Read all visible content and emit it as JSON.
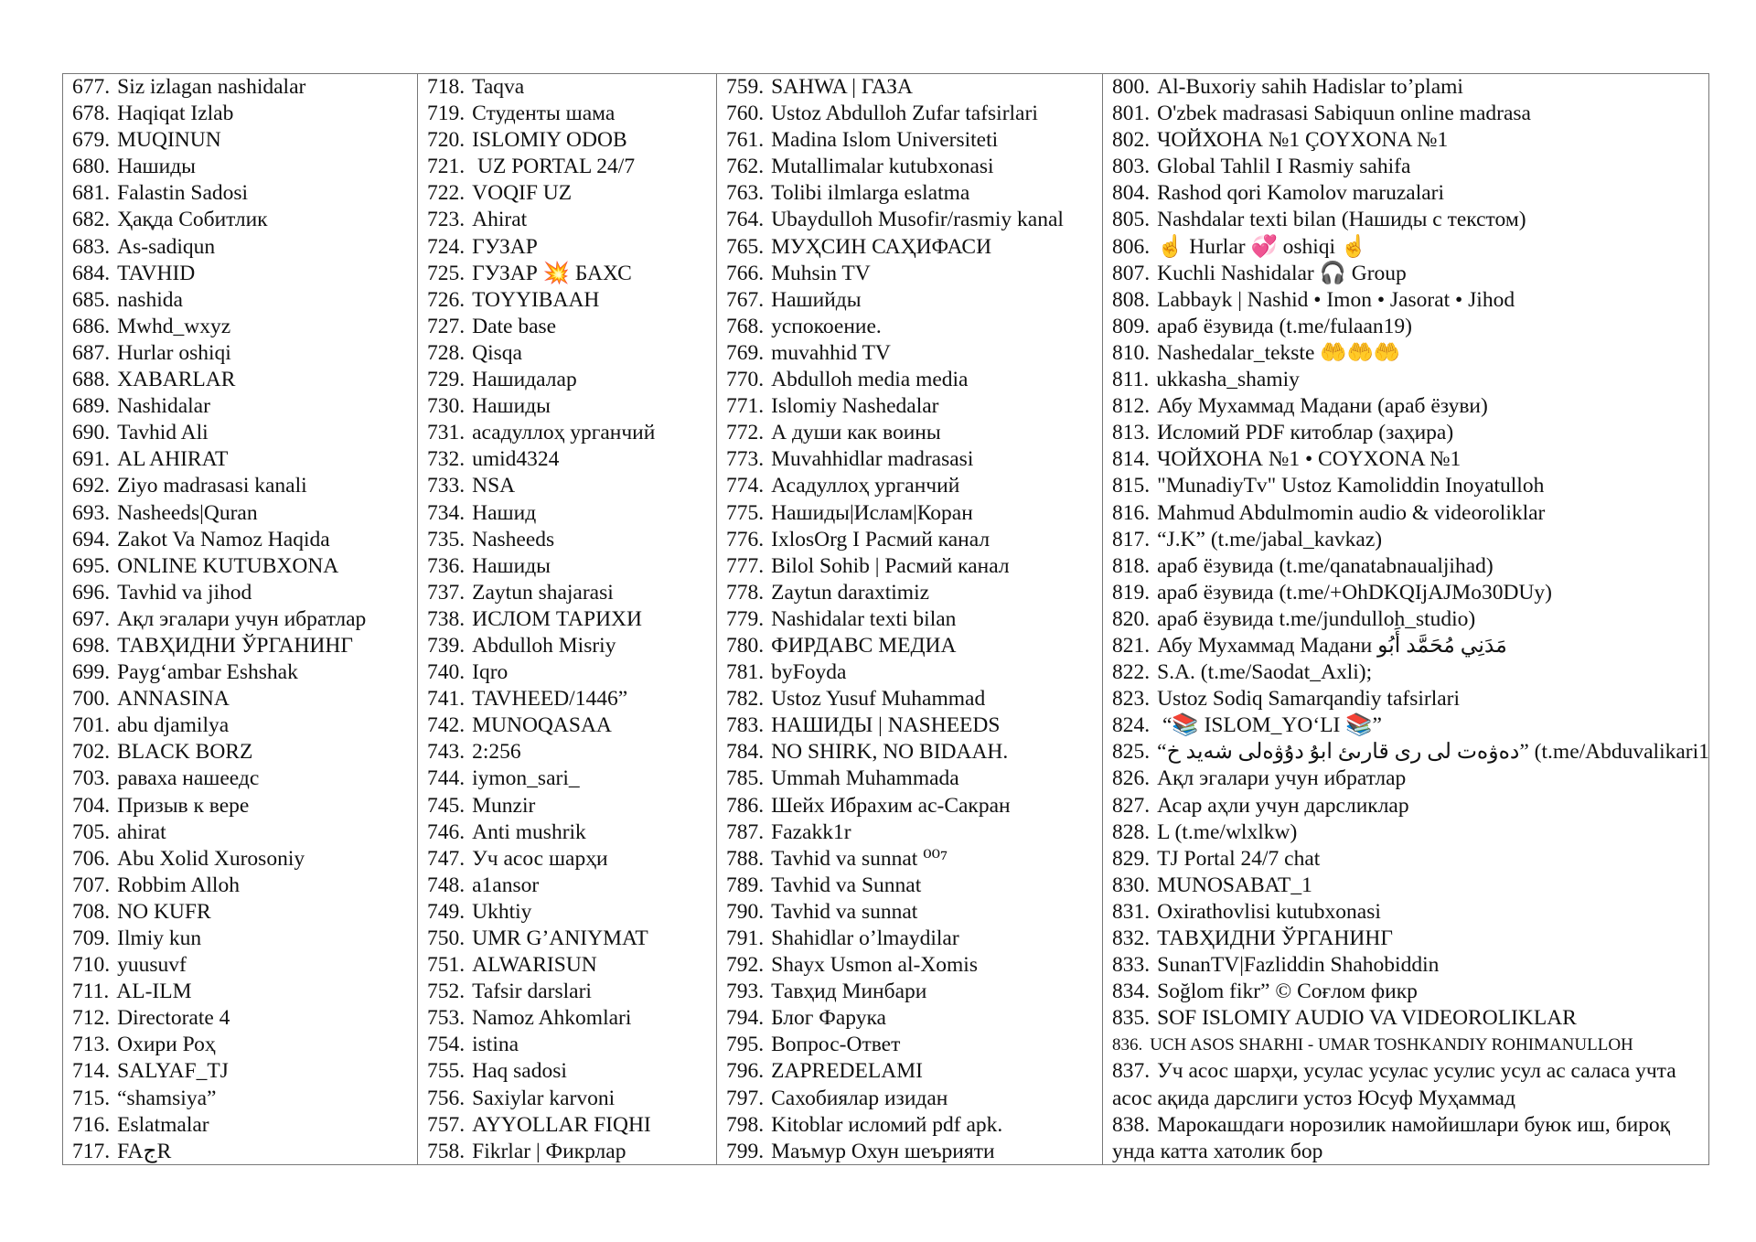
{
  "columns": [
    {
      "items": [
        {
          "num": "677.",
          "text": "Siz izlagan nashidalar"
        },
        {
          "num": "678.",
          "text": "Haqiqat Izlab"
        },
        {
          "num": "679.",
          "text": "MUQINUN"
        },
        {
          "num": "680.",
          "text": "Нашиды"
        },
        {
          "num": "681.",
          "text": "Falastin Sadosi"
        },
        {
          "num": "682.",
          "text": "Ҳақда Собитлик"
        },
        {
          "num": "683.",
          "text": "As-sadiqun"
        },
        {
          "num": "684.",
          "text": "TAVHID"
        },
        {
          "num": "685.",
          "text": "nashida"
        },
        {
          "num": "686.",
          "text": "Mwhd_wxyz"
        },
        {
          "num": "687.",
          "text": "Hurlar oshiqi"
        },
        {
          "num": "688.",
          "text": "XABARLAR"
        },
        {
          "num": "689.",
          "text": "Nashidalar"
        },
        {
          "num": "690.",
          "text": "Tavhid Ali"
        },
        {
          "num": "691.",
          "text": "AL AHIRAT"
        },
        {
          "num": "692.",
          "text": "Ziyo madrasasi kanali"
        },
        {
          "num": "693.",
          "text": "Nasheeds|Quran"
        },
        {
          "num": "694.",
          "text": "Zakot Va Namoz Haqida"
        },
        {
          "num": "695.",
          "text": "ONLINE KUTUBXONA"
        },
        {
          "num": "696.",
          "text": "Tavhid va jihod"
        },
        {
          "num": "697.",
          "text": "Ақл эгалари учун ибратлар"
        },
        {
          "num": "698.",
          "text": "ТАВҲИДНИ ЎРГАНИНГ"
        },
        {
          "num": "699.",
          "text": "Payg‘ambar Eshshak"
        },
        {
          "num": "700.",
          "text": "ANNASINA"
        },
        {
          "num": "701.",
          "text": "abu djamilya"
        },
        {
          "num": "702.",
          "text": "BLACK BORZ"
        },
        {
          "num": "703.",
          "text": "раваха нашеедс"
        },
        {
          "num": "704.",
          "text": "Призыв к вере"
        },
        {
          "num": "705.",
          "text": "ahirat"
        },
        {
          "num": "706.",
          "text": "Abu Xolid Xurosoniy"
        },
        {
          "num": "707.",
          "text": "Robbim Alloh"
        },
        {
          "num": "708.",
          "text": "NO KUFR"
        },
        {
          "num": "709.",
          "text": "Ilmiy kun"
        },
        {
          "num": "710.",
          "text": "yuusuvf"
        },
        {
          "num": "711.",
          "text": "AL-ILM"
        },
        {
          "num": "712.",
          "text": "Directorate 4"
        },
        {
          "num": "713.",
          "text": "Охири Роҳ"
        },
        {
          "num": "714.",
          "text": "SALYAF_TJ"
        },
        {
          "num": "715.",
          "text": "“shamsiya”"
        },
        {
          "num": "716.",
          "text": "Eslatmalar"
        },
        {
          "num": "717.",
          "text": "FAجR"
        }
      ]
    },
    {
      "items": [
        {
          "num": "718.",
          "text": "Taqva"
        },
        {
          "num": "719.",
          "text": "Студенты шама"
        },
        {
          "num": "720.",
          "text": "ISLOMIY ODOB"
        },
        {
          "num": "721.",
          "text": " UZ PORTAL 24/7"
        },
        {
          "num": "722.",
          "text": "VOQIF UZ"
        },
        {
          "num": "723.",
          "text": "Ahirat"
        },
        {
          "num": "724.",
          "text": "ГУЗАР"
        },
        {
          "num": "725.",
          "text": "ГУЗАР 💥 БАХС"
        },
        {
          "num": "726.",
          "text": "TOYYIBAAH"
        },
        {
          "num": "727.",
          "text": "Date base"
        },
        {
          "num": "728.",
          "text": "Qisqa"
        },
        {
          "num": "729.",
          "text": "Нашидалар"
        },
        {
          "num": "730.",
          "text": "Нашиды"
        },
        {
          "num": "731.",
          "text": "асадуллоҳ урганчий"
        },
        {
          "num": "732.",
          "text": "umid4324"
        },
        {
          "num": "733.",
          "text": "NSA"
        },
        {
          "num": "734.",
          "text": "Нашид"
        },
        {
          "num": "735.",
          "text": "Nasheeds"
        },
        {
          "num": "736.",
          "text": "Нашиды"
        },
        {
          "num": "737.",
          "text": "Zaytun shajarasi"
        },
        {
          "num": "738.",
          "text": "ИСЛОМ ТАРИХИ"
        },
        {
          "num": "739.",
          "text": "Abdulloh Misriy"
        },
        {
          "num": "740.",
          "text": "Iqro"
        },
        {
          "num": "741.",
          "text": "TAVHEED/1446”"
        },
        {
          "num": "742.",
          "text": "MUNOQASAA"
        },
        {
          "num": "743.",
          "text": "2:256"
        },
        {
          "num": "744.",
          "text": "iymon_sari_"
        },
        {
          "num": "745.",
          "text": "Munzir"
        },
        {
          "num": "746.",
          "text": "Anti mushrik"
        },
        {
          "num": "747.",
          "text": "Уч асос шарҳи"
        },
        {
          "num": "748.",
          "text": "a1ansor"
        },
        {
          "num": "749.",
          "text": "Ukhtiy"
        },
        {
          "num": "750.",
          "text": "UMR G’ANIYMAT"
        },
        {
          "num": "751.",
          "text": "ALWARISUN"
        },
        {
          "num": "752.",
          "text": "Tafsir darslari"
        },
        {
          "num": "753.",
          "text": "Namoz Ahkomlari"
        },
        {
          "num": "754.",
          "text": "istina"
        },
        {
          "num": "755.",
          "text": "Haq sadosi"
        },
        {
          "num": "756.",
          "text": "Saxiylar karvoni"
        },
        {
          "num": "757.",
          "text": "AYYOLLAR FIQHI"
        },
        {
          "num": "758.",
          "text": "Fikrlar | Фикрлар"
        }
      ]
    },
    {
      "items": [
        {
          "num": "759.",
          "text": "SAHWA | ГАЗА"
        },
        {
          "num": "760.",
          "text": "Ustoz Abdulloh Zufar tafsirlari"
        },
        {
          "num": "761.",
          "text": "Madina Islom Universiteti"
        },
        {
          "num": "762.",
          "text": "Mutallimalar kutubxonasi"
        },
        {
          "num": "763.",
          "text": "Tolibi ilmlarga eslatma"
        },
        {
          "num": "764.",
          "text": "Ubaydulloh Musofir/rasmiy kanal"
        },
        {
          "num": "765.",
          "text": "МУҲСИН САҲИФАСИ"
        },
        {
          "num": "766.",
          "text": "Muhsin TV"
        },
        {
          "num": "767.",
          "text": "Нашийды"
        },
        {
          "num": "768.",
          "text": "успокоение."
        },
        {
          "num": "769.",
          "text": "muvahhid TV"
        },
        {
          "num": "770.",
          "text": "Abdulloh media media"
        },
        {
          "num": "771.",
          "text": "Islomiy Nashedalar"
        },
        {
          "num": "772.",
          "text": "А души как воины"
        },
        {
          "num": "773.",
          "text": "Muvahhidlar madrasasi"
        },
        {
          "num": "774.",
          "text": "Асадуллоҳ урганчий"
        },
        {
          "num": "775.",
          "text": "Нашиды|Ислам|Коран"
        },
        {
          "num": "776.",
          "text": "IxlosOrg I Расмий канал"
        },
        {
          "num": "777.",
          "text": "Bilol Sohib | Расмий канал"
        },
        {
          "num": "778.",
          "text": "Zaytun daraxtimiz"
        },
        {
          "num": "779.",
          "text": "Nashidalar texti bilan"
        },
        {
          "num": "780.",
          "text": "ФИРДАВС МЕДИА"
        },
        {
          "num": "781.",
          "text": "byFoyda"
        },
        {
          "num": "782.",
          "text": "Ustoz Yusuf Muhammad"
        },
        {
          "num": "783.",
          "text": "НАШИДЫ | NASHEEDS"
        },
        {
          "num": "784.",
          "text": "NO SHIRK, NO BIDAAH."
        },
        {
          "num": "785.",
          "text": "Ummah Muhammada"
        },
        {
          "num": "786.",
          "text": "Шейх Ибрахим ас-Сакран"
        },
        {
          "num": "787.",
          "text": "Fazakk1r"
        },
        {
          "num": "788.",
          "text": "Tavhid va sunnat ⁰⁰⁷"
        },
        {
          "num": "789.",
          "text": "Tavhid va Sunnat"
        },
        {
          "num": "790.",
          "text": "Tavhid va sunnat"
        },
        {
          "num": "791.",
          "text": "Shahidlar o’lmaydilar"
        },
        {
          "num": "792.",
          "text": "Shayx Usmon al-Xomis"
        },
        {
          "num": "793.",
          "text": "Тавҳид Минбари"
        },
        {
          "num": "794.",
          "text": "Блог Фарука"
        },
        {
          "num": "795.",
          "text": "Вопрос-Ответ"
        },
        {
          "num": "796.",
          "text": "ZAPREDELAMI"
        },
        {
          "num": "797.",
          "text": "Сахобиялар изидан"
        },
        {
          "num": "798.",
          "text": "Kitoblar исломий pdf apk."
        },
        {
          "num": "799.",
          "text": "Маъмур Охун шеърияти"
        }
      ]
    },
    {
      "items": [
        {
          "num": "800.",
          "text": "Al-Buxoriy sahih Hadislar to’plami"
        },
        {
          "num": "801.",
          "text": "O'zbek madrasasi Sabiquun online madrasa"
        },
        {
          "num": "802.",
          "text": "ЧОЙХОНА №1 ÇOYXONA №1"
        },
        {
          "num": "803.",
          "text": "Global Tahlil I Rasmiy sahifa"
        },
        {
          "num": "804.",
          "text": "Rashod qori Kamolov maruzalari"
        },
        {
          "num": "805.",
          "text": "Nashdalar texti bilan (Нашиды с текстом)"
        },
        {
          "num": "806.",
          "text": "☝ Hurlar 💞 oshiqi ☝"
        },
        {
          "num": "807.",
          "text": "Kuchli Nashidalar 🎧 Group"
        },
        {
          "num": "808.",
          "text": "Labbayk | Nashid • Imon • Jasorat • Jihod"
        },
        {
          "num": "809.",
          "text": "араб ёзувида (t.me/fulaan19)"
        },
        {
          "num": "810.",
          "text": "Nashedalar_tekste 🤲🤲🤲"
        },
        {
          "num": "811.",
          "text": "ukkasha_shamiy"
        },
        {
          "num": "812.",
          "text": "Абу Мухаммад Мадани (араб ёзуви)"
        },
        {
          "num": "813.",
          "text": "Исломий PDF китоблар (заҳира)"
        },
        {
          "num": "814.",
          "text": "ЧОЙХОНА №1 • COYXONA №1"
        },
        {
          "num": "815.",
          "text": "\"MunadiyTv\" Ustoz Kamoliddin Inoyatulloh"
        },
        {
          "num": "816.",
          "text": "Mahmud Abdulmomin audio & videoroliklar"
        },
        {
          "num": "817.",
          "text": "“J.K” (t.me/jabal_kavkaz)"
        },
        {
          "num": "818.",
          "text": "араб ёзувида (t.me/qanatabnaualjihad)"
        },
        {
          "num": "819.",
          "text": "араб ёзувида (t.me/+OhDKQIjAJMo30DUy)"
        },
        {
          "num": "820.",
          "text": "араб ёзувида t.me/jundulloh_studio)"
        },
        {
          "num": "821.",
          "text": "Абу Мухаммад Мадани  مَدَنِي مُحَمَّد أَبُو"
        },
        {
          "num": "822.",
          "text": "S.A. (t.me/Saodat_Axli);"
        },
        {
          "num": "823.",
          "text": "Ustoz Sodiq Samarqandiy tafsirlari"
        },
        {
          "num": "824.",
          "text": " “📚 ISLOM_YO‘LI 📚”"
        },
        {
          "num": "825.",
          "text": "“دەۋەت لى رى قارىئ ابۇ دۇۋەلى شەيد خ” (t.me/Abduvalikari1)"
        },
        {
          "num": "826.",
          "text": "Ақл эгалари учун ибратлар"
        },
        {
          "num": "827.",
          "text": "Асар аҳли учун дарсликлар"
        },
        {
          "num": "828.",
          "text": "L (t.me/wlxlkw)"
        },
        {
          "num": "829.",
          "text": "TJ Portal 24/7 chat"
        },
        {
          "num": "830.",
          "text": "MUNOSABAT_1"
        },
        {
          "num": "831.",
          "text": "Oxirathovlisi kutubxonasi"
        },
        {
          "num": "832.",
          "text": "ТАВҲИДНИ ЎРГАНИНГ"
        },
        {
          "num": "833.",
          "text": "SunanTV|Fazliddin Shahobiddin"
        },
        {
          "num": "834.",
          "text": "Soğlom fikr” © Соғлом фикр"
        },
        {
          "num": "835.",
          "text": "SOF ISLOMIY AUDIO VA VIDEOROLIKLAR"
        },
        {
          "num": "836.",
          "text": "UCH ASOS SHARHI - UMAR TOSHKANDIY ROHIMANULLOH"
        },
        {
          "num": "837.",
          "text": "Уч асос шарҳи, усулас усулас усулис усул ас саласа учта асос ақида дарслиги устоз Юсуф Муҳаммад"
        },
        {
          "num": "838.",
          "text": "Марокашдаги норозилик намойишлари буюк иш, бироқ унда катта хатолик бор"
        }
      ]
    }
  ]
}
